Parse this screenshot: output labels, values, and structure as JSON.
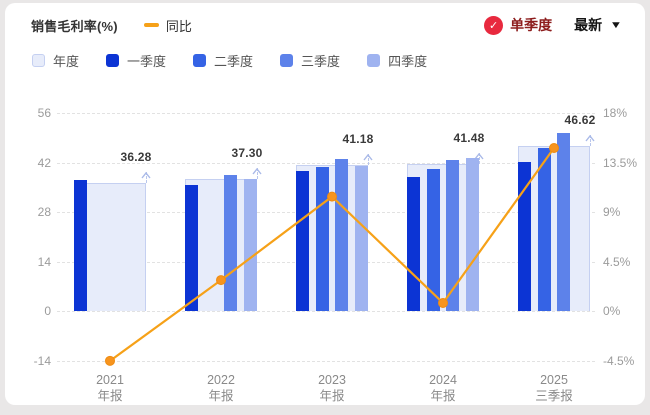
{
  "header": {
    "title": "销售毛利率(%)",
    "line_series_label": "同比",
    "mode_badge_label": "单季度",
    "latest_label": "最新",
    "check_glyph": "✓",
    "dropdown_glyph": "▼",
    "badge_color": "#e8293e",
    "mode_text_color": "#8d1d1d"
  },
  "legend": {
    "items": [
      {
        "label": "年度",
        "color": "#e7ecfa",
        "border": "#c5d0f1"
      },
      {
        "label": "一季度",
        "color": "#0c34d4",
        "border": "#0c34d4"
      },
      {
        "label": "二季度",
        "color": "#3563e5",
        "border": "#3563e5"
      },
      {
        "label": "三季度",
        "color": "#5d82ea",
        "border": "#5d82ea"
      },
      {
        "label": "四季度",
        "color": "#9fb3f0",
        "border": "#9fb3f0"
      }
    ]
  },
  "chart_data": {
    "type": "bar",
    "title": "销售毛利率(%)",
    "categories": [
      [
        "2021",
        "年报"
      ],
      [
        "2022",
        "年报"
      ],
      [
        "2023",
        "年报"
      ],
      [
        "2024",
        "年报"
      ],
      [
        "2025",
        "三季报"
      ]
    ],
    "left_axis": {
      "label": "销售毛利率(%)",
      "ticks": [
        56,
        42,
        28,
        14,
        0,
        -14
      ],
      "range": [
        -24,
        56
      ]
    },
    "right_axis": {
      "label": "同比",
      "ticks": [
        "18%",
        "13.5%",
        "9%",
        "4.5%",
        "0%",
        "-4.5%"
      ],
      "tick_values": [
        18,
        13.5,
        9,
        4.5,
        0,
        -4.5
      ]
    },
    "annual_series": {
      "name": "年度",
      "fill": "#e7ecfa",
      "border": "#c5d0f1",
      "values": [
        36.28,
        37.3,
        41.18,
        41.48,
        46.62
      ],
      "labels": [
        "36.28",
        "37.30",
        "41.18",
        "41.48",
        "46.62"
      ]
    },
    "quarter_series": [
      {
        "name": "一季度",
        "color": "#0c34d4",
        "values": [
          37.0,
          35.6,
          39.7,
          37.8,
          42.2
        ]
      },
      {
        "name": "二季度",
        "color": "#3563e5",
        "values": [
          null,
          null,
          40.8,
          40.2,
          46.2
        ]
      },
      {
        "name": "三季度",
        "color": "#5d82ea",
        "values": [
          null,
          38.5,
          42.9,
          42.7,
          50.4
        ]
      },
      {
        "name": "四季度",
        "color": "#9fb3f0",
        "values": [
          null,
          37.3,
          41.0,
          43.2,
          null
        ]
      }
    ],
    "line_series": {
      "name": "同比",
      "axis": "right",
      "color": "#f6a118",
      "point_fill": "#f7941e",
      "values": [
        -4.53,
        2.81,
        10.4,
        0.73,
        14.82
      ]
    },
    "grid": "horizontal-dashed",
    "legend_position": "top-left"
  }
}
